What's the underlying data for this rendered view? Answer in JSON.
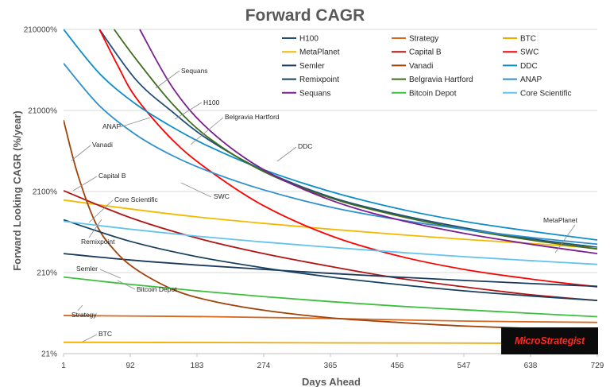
{
  "chart_data": {
    "type": "line",
    "title": "Forward CAGR",
    "xlabel": "Days Ahead",
    "ylabel": "Forward Looking CAGR (%/year)",
    "y_scale": "log",
    "xlim": [
      1,
      729
    ],
    "ylim": [
      21,
      210000
    ],
    "x_ticks": [
      1,
      92,
      183,
      274,
      365,
      456,
      547,
      638,
      729
    ],
    "y_ticks": [
      {
        "value": 21,
        "label": "21%"
      },
      {
        "value": 210,
        "label": "210%"
      },
      {
        "value": 2100,
        "label": "2100%"
      },
      {
        "value": 21000,
        "label": "21000%"
      },
      {
        "value": 210000,
        "label": "210000%"
      }
    ],
    "grid": "horizontal",
    "legend_position": "top-right",
    "series": [
      {
        "name": "H100",
        "color": "#1f4e79",
        "x": [
          50,
          100,
          150,
          200,
          274,
          365,
          456,
          547,
          638,
          729
        ],
        "values": [
          210000,
          50000,
          20000,
          9000,
          3800,
          1800,
          1100,
          750,
          550,
          430
        ]
      },
      {
        "name": "Strategy",
        "color": "#d4691f",
        "x": [
          1,
          100,
          200,
          365,
          547,
          729
        ],
        "values": [
          62,
          61,
          60,
          57,
          53,
          51
        ]
      },
      {
        "name": "BTC",
        "color": "#f2a900",
        "x": [
          1,
          183,
          365,
          547,
          729
        ],
        "values": [
          29,
          28.8,
          28.5,
          28.3,
          28
        ]
      },
      {
        "name": "MetaPlanet",
        "color": "#f5b800",
        "x": [
          1,
          92,
          183,
          274,
          365,
          456,
          547,
          638,
          729
        ],
        "values": [
          1650,
          1280,
          1020,
          850,
          720,
          620,
          540,
          480,
          420
        ]
      },
      {
        "name": "Capital B",
        "color": "#b01515",
        "x": [
          1,
          92,
          183,
          274,
          365,
          456,
          547,
          638,
          729
        ],
        "values": [
          2150,
          1000,
          560,
          360,
          250,
          180,
          140,
          112,
          95
        ]
      },
      {
        "name": "SWC",
        "color": "#ff0000",
        "x": [
          50,
          75,
          100,
          150,
          200,
          274,
          365,
          456,
          547,
          638,
          729
        ],
        "values": [
          210000,
          75000,
          30000,
          9000,
          3800,
          1400,
          600,
          340,
          230,
          175,
          140
        ]
      },
      {
        "name": "Semler",
        "color": "#1a3a5c",
        "x": [
          1,
          92,
          183,
          274,
          365,
          456,
          547,
          638,
          729
        ],
        "values": [
          360,
          300,
          260,
          230,
          205,
          185,
          168,
          154,
          142
        ]
      },
      {
        "name": "Vanadi",
        "color": "#a0430a",
        "x": [
          1,
          20,
          45,
          70,
          100,
          150,
          200,
          274,
          365,
          456,
          547,
          638,
          729
        ],
        "values": [
          16000,
          3500,
          850,
          400,
          230,
          130,
          95,
          72,
          58,
          51,
          46,
          43,
          40
        ]
      },
      {
        "name": "DDC",
        "color": "#0f8dc8",
        "x": [
          1,
          50,
          100,
          150,
          200,
          274,
          365,
          456,
          547,
          638,
          729
        ],
        "values": [
          210000,
          60000,
          25000,
          13000,
          7500,
          3900,
          2100,
          1300,
          900,
          680,
          530
        ]
      },
      {
        "name": "Remixpoint",
        "color": "#17415f",
        "x": [
          1,
          92,
          183,
          274,
          365,
          456,
          547,
          638,
          729
        ],
        "values": [
          940,
          510,
          330,
          240,
          185,
          150,
          125,
          108,
          95
        ]
      },
      {
        "name": "Belgravia Hartford",
        "color": "#3f6d1f",
        "x": [
          70,
          100,
          150,
          200,
          274,
          365,
          456,
          547,
          638,
          729
        ],
        "values": [
          210000,
          90000,
          25000,
          9500,
          3700,
          1750,
          1060,
          720,
          530,
          410
        ]
      },
      {
        "name": "ANAP",
        "color": "#2e8fcf",
        "x": [
          1,
          50,
          100,
          150,
          200,
          274,
          365,
          456,
          547,
          638,
          729
        ],
        "values": [
          80000,
          24000,
          10500,
          5800,
          3700,
          2200,
          1350,
          950,
          720,
          570,
          470
        ]
      },
      {
        "name": "Sequans",
        "color": "#7a1f8f",
        "x": [
          105,
          150,
          200,
          274,
          365,
          456,
          547,
          638,
          729
        ],
        "values": [
          210000,
          40000,
          12000,
          3900,
          1650,
          950,
          640,
          470,
          360
        ]
      },
      {
        "name": "Bitcoin Depot",
        "color": "#3cbf3c",
        "x": [
          1,
          92,
          183,
          274,
          365,
          456,
          547,
          638,
          729
        ],
        "values": [
          185,
          150,
          125,
          106,
          92,
          81,
          73,
          66,
          60
        ]
      },
      {
        "name": "Core Scientific",
        "color": "#62c3ee",
        "x": [
          1,
          92,
          183,
          274,
          365,
          456,
          547,
          638,
          729
        ],
        "values": [
          900,
          720,
          590,
          500,
          430,
          375,
          330,
          295,
          265
        ]
      }
    ],
    "annotations": [
      {
        "text": "Sequans",
        "series": "Sequans"
      },
      {
        "text": "H100",
        "series": "H100"
      },
      {
        "text": "Belgravia Hartford",
        "series": "Belgravia Hartford"
      },
      {
        "text": "ANAP",
        "series": "ANAP"
      },
      {
        "text": "DDC",
        "series": "DDC"
      },
      {
        "text": "Vanadi",
        "series": "Vanadi"
      },
      {
        "text": "Capital B",
        "series": "Capital B"
      },
      {
        "text": "SWC",
        "series": "SWC"
      },
      {
        "text": "Core Scientific",
        "series": "Core Scientific"
      },
      {
        "text": "Remixpoint",
        "series": "Remixpoint"
      },
      {
        "text": "MetaPlanet",
        "series": "MetaPlanet"
      },
      {
        "text": "Semler",
        "series": "Semler"
      },
      {
        "text": "Bitcoin Depot",
        "series": "Bitcoin Depot"
      },
      {
        "text": "Strategy",
        "series": "Strategy"
      },
      {
        "text": "BTC",
        "series": "BTC"
      }
    ]
  },
  "logo": {
    "text": "MicroStrategist"
  }
}
